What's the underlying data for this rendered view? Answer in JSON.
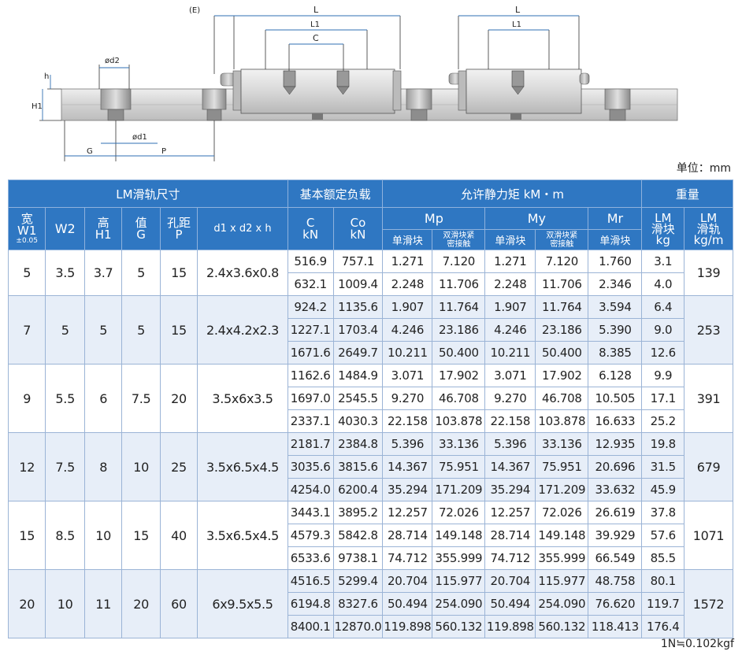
{
  "drawing": {
    "labels": {
      "e": "(E)",
      "l_left": "L",
      "l1_left": "L1",
      "c": "C",
      "l_right": "L",
      "l1_right": "L1",
      "h": "h",
      "h1": "H1",
      "d2": "ød2",
      "d1": "ød1",
      "g": "G",
      "p": "P"
    }
  },
  "unit_label": "单位：mm",
  "header": {
    "group_size": "LM滑轨尺寸",
    "group_load": "基本额定负载",
    "group_moment": "允许静力矩 kM・m",
    "group_weight": "重量",
    "w1": [
      "宽",
      "W1",
      "±0.05"
    ],
    "w2": "W2",
    "h1": [
      "高",
      "H1"
    ],
    "g": [
      "值",
      "G"
    ],
    "p": [
      "孔距",
      "P"
    ],
    "dxh": "d1 x d2 x h",
    "c": [
      "C",
      "kN"
    ],
    "co": [
      "Co",
      "kN"
    ],
    "mp": "Mp",
    "my": "My",
    "mr": "Mr",
    "single": "单滑块",
    "double": [
      "双滑块紧",
      "密接触"
    ],
    "lm_block": [
      "LM",
      "滑块",
      "kg"
    ],
    "lm_rail": [
      "LM",
      "滑轨",
      "kg/m"
    ]
  },
  "groups": [
    {
      "w1": "5",
      "w2": "3.5",
      "h1": "3.7",
      "g": "5",
      "p": "15",
      "dxh": "2.4x3.6x0.8",
      "rail": "139",
      "rows": [
        [
          "516.9",
          "757.1",
          "1.271",
          "7.120",
          "1.271",
          "7.120",
          "1.760",
          "3.1"
        ],
        [
          "632.1",
          "1009.4",
          "2.248",
          "11.706",
          "2.248",
          "11.706",
          "2.346",
          "4.0"
        ]
      ]
    },
    {
      "w1": "7",
      "w2": "5",
      "h1": "5",
      "g": "5",
      "p": "15",
      "dxh": "2.4x4.2x2.3",
      "rail": "253",
      "rows": [
        [
          "924.2",
          "1135.6",
          "1.907",
          "11.764",
          "1.907",
          "11.764",
          "3.594",
          "6.4"
        ],
        [
          "1227.1",
          "1703.4",
          "4.246",
          "23.186",
          "4.246",
          "23.186",
          "5.390",
          "9.0"
        ],
        [
          "1671.6",
          "2649.7",
          "10.211",
          "50.400",
          "10.211",
          "50.400",
          "8.385",
          "12.6"
        ]
      ]
    },
    {
      "w1": "9",
      "w2": "5.5",
      "h1": "6",
      "g": "7.5",
      "p": "20",
      "dxh": "3.5x6x3.5",
      "rail": "391",
      "rows": [
        [
          "1162.6",
          "1484.9",
          "3.071",
          "17.902",
          "3.071",
          "17.902",
          "6.128",
          "9.9"
        ],
        [
          "1697.0",
          "2545.5",
          "9.270",
          "46.708",
          "9.270",
          "46.708",
          "10.505",
          "17.1"
        ],
        [
          "2337.1",
          "4030.3",
          "22.158",
          "103.878",
          "22.158",
          "103.878",
          "16.633",
          "25.2"
        ]
      ]
    },
    {
      "w1": "12",
      "w2": "7.5",
      "h1": "8",
      "g": "10",
      "p": "25",
      "dxh": "3.5x6.5x4.5",
      "rail": "679",
      "rows": [
        [
          "2181.7",
          "2384.8",
          "5.396",
          "33.136",
          "5.396",
          "33.136",
          "12.935",
          "19.8"
        ],
        [
          "3035.6",
          "3815.6",
          "14.367",
          "75.951",
          "14.367",
          "75.951",
          "20.696",
          "31.5"
        ],
        [
          "4254.0",
          "6200.4",
          "35.294",
          "171.209",
          "35.294",
          "171.209",
          "33.632",
          "45.9"
        ]
      ]
    },
    {
      "w1": "15",
      "w2": "8.5",
      "h1": "10",
      "g": "15",
      "p": "40",
      "dxh": "3.5x6.5x4.5",
      "rail": "1071",
      "rows": [
        [
          "3443.1",
          "3895.2",
          "12.257",
          "72.026",
          "12.257",
          "72.026",
          "26.619",
          "37.8"
        ],
        [
          "4579.3",
          "5842.8",
          "28.714",
          "149.148",
          "28.714",
          "149.148",
          "39.929",
          "57.6"
        ],
        [
          "6533.6",
          "9738.1",
          "74.712",
          "355.999",
          "74.712",
          "355.999",
          "66.549",
          "85.5"
        ]
      ]
    },
    {
      "w1": "20",
      "w2": "10",
      "h1": "11",
      "g": "20",
      "p": "60",
      "dxh": "6x9.5x5.5",
      "rail": "1572",
      "rows": [
        [
          "4516.5",
          "5299.4",
          "20.704",
          "115.977",
          "20.704",
          "115.977",
          "48.758",
          "80.1"
        ],
        [
          "6194.8",
          "8327.6",
          "50.494",
          "254.090",
          "50.494",
          "254.090",
          "76.620",
          "119.7"
        ],
        [
          "8400.1",
          "12870.0",
          "119.898",
          "560.132",
          "119.898",
          "560.132",
          "118.413",
          "176.4"
        ]
      ]
    }
  ],
  "footnote": "1N≒0.102kgf"
}
